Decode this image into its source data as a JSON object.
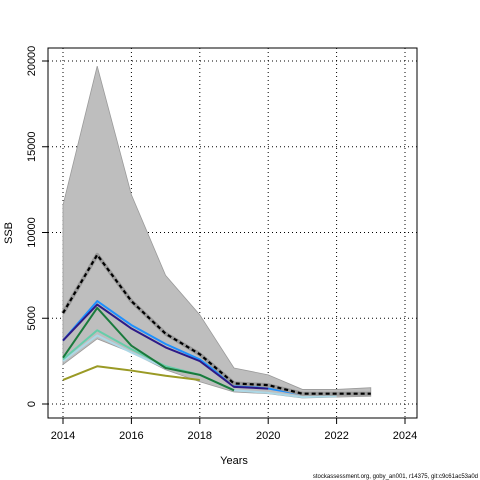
{
  "chart_data": {
    "type": "line",
    "xlabel": "Years",
    "ylabel": "SSB",
    "xlim": [
      2014,
      2024
    ],
    "ylim": [
      0,
      20000
    ],
    "x_ticks": [
      2014,
      2016,
      2018,
      2020,
      2022,
      2024
    ],
    "y_ticks": [
      0,
      5000,
      10000,
      15000,
      20000
    ],
    "grid": true,
    "grid_style": "dotted",
    "band": {
      "x": [
        2014,
        2015,
        2016,
        2017,
        2018,
        2019,
        2020,
        2021,
        2022,
        2023
      ],
      "upper": [
        11600,
        19700,
        12200,
        7500,
        5200,
        2100,
        1700,
        850,
        850,
        950
      ],
      "lower": [
        2300,
        3800,
        3000,
        2000,
        1300,
        700,
        600,
        350,
        400,
        450
      ],
      "color": "#bebebe"
    },
    "series": [
      {
        "color": "#add8e6",
        "x": [
          2014,
          2015,
          2016,
          2017,
          2018,
          2019,
          2020,
          2021,
          2022
        ],
        "values": [
          2500,
          4000,
          3000,
          2100,
          1700,
          800,
          650,
          400,
          450
        ]
      },
      {
        "color": "#1e90ff",
        "x": [
          2014,
          2015,
          2016,
          2017,
          2018,
          2019,
          2020,
          2021
        ],
        "values": [
          3700,
          6000,
          4600,
          3500,
          2600,
          1100,
          900,
          550
        ]
      },
      {
        "color": "#2e1a87",
        "x": [
          2014,
          2015,
          2016,
          2017,
          2018,
          2019,
          2020
        ],
        "values": [
          3700,
          5800,
          4400,
          3300,
          2500,
          1000,
          900
        ]
      },
      {
        "color": "#66cdaa",
        "x": [
          2014,
          2015,
          2016,
          2017,
          2018,
          2019
        ],
        "values": [
          2600,
          4300,
          3200,
          2200,
          1700,
          800
        ]
      },
      {
        "color": "#1a7a3c",
        "x": [
          2014,
          2015,
          2016,
          2017,
          2018,
          2019
        ],
        "values": [
          2700,
          5600,
          3400,
          2100,
          1700,
          800
        ]
      },
      {
        "color": "#9a9a25",
        "x": [
          2014,
          2015,
          2016,
          2017,
          2018
        ],
        "values": [
          1400,
          2200,
          1950,
          1650,
          1400
        ]
      },
      {
        "color": "#000000",
        "dashed": true,
        "x": [
          2014,
          2015,
          2016,
          2017,
          2018,
          2019,
          2020,
          2021,
          2022,
          2023
        ],
        "values": [
          5300,
          8700,
          6000,
          4100,
          2900,
          1200,
          1100,
          600,
          600,
          600
        ]
      }
    ]
  },
  "footer": "stockassessment.org, goby_an001, r14375, git:c9c61ac53a0d"
}
